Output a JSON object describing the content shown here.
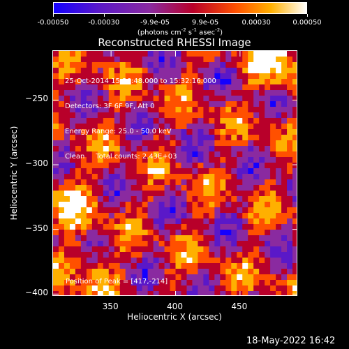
{
  "chart_data": {
    "type": "heatmap",
    "title": "Reconstructed RHESSI Image",
    "xlabel": "Heliocentric X (arcsec)",
    "ylabel": "Heliocentric Y (arcsec)",
    "xlim": [
      305,
      495
    ],
    "ylim": [
      -402,
      -212
    ],
    "x_ticks": [
      350,
      400,
      450
    ],
    "y_ticks": [
      -400,
      -350,
      -300,
      -250
    ],
    "colorbar": {
      "range": [
        -0.0005,
        0.0005
      ],
      "tick_values": [
        -0.0005,
        -0.0003,
        -9.9e-05,
        9.9e-05,
        0.0003,
        0.0005
      ],
      "tick_labels": [
        "-0.00050",
        "-0.00030",
        "-9.9e-05",
        "9.9e-05",
        "0.00030",
        "0.00050"
      ],
      "unit_parts": [
        "(photons cm",
        "-2",
        " s",
        "-1",
        " asec",
        "-2",
        ")"
      ],
      "colors": [
        "#1400ff",
        "#5a18c8",
        "#8a2aa0",
        "#b8002a",
        "#ff5000",
        "#ffb000",
        "#ffffff"
      ]
    },
    "annotations": [
      "25-Oct-2014 15:26:48.000 to 15:32:16.000",
      "Detectors: 3F 6F 9F, Att 0",
      "Energy Range: 25.0 - 50.0 keV",
      "Clean     Total counts: 2.43E+03"
    ],
    "peak_label": "Position of Peak = [417,-214]",
    "peak": [
      417,
      -214
    ]
  },
  "footer": {
    "timestamp": "18-May-2022 16:42"
  }
}
